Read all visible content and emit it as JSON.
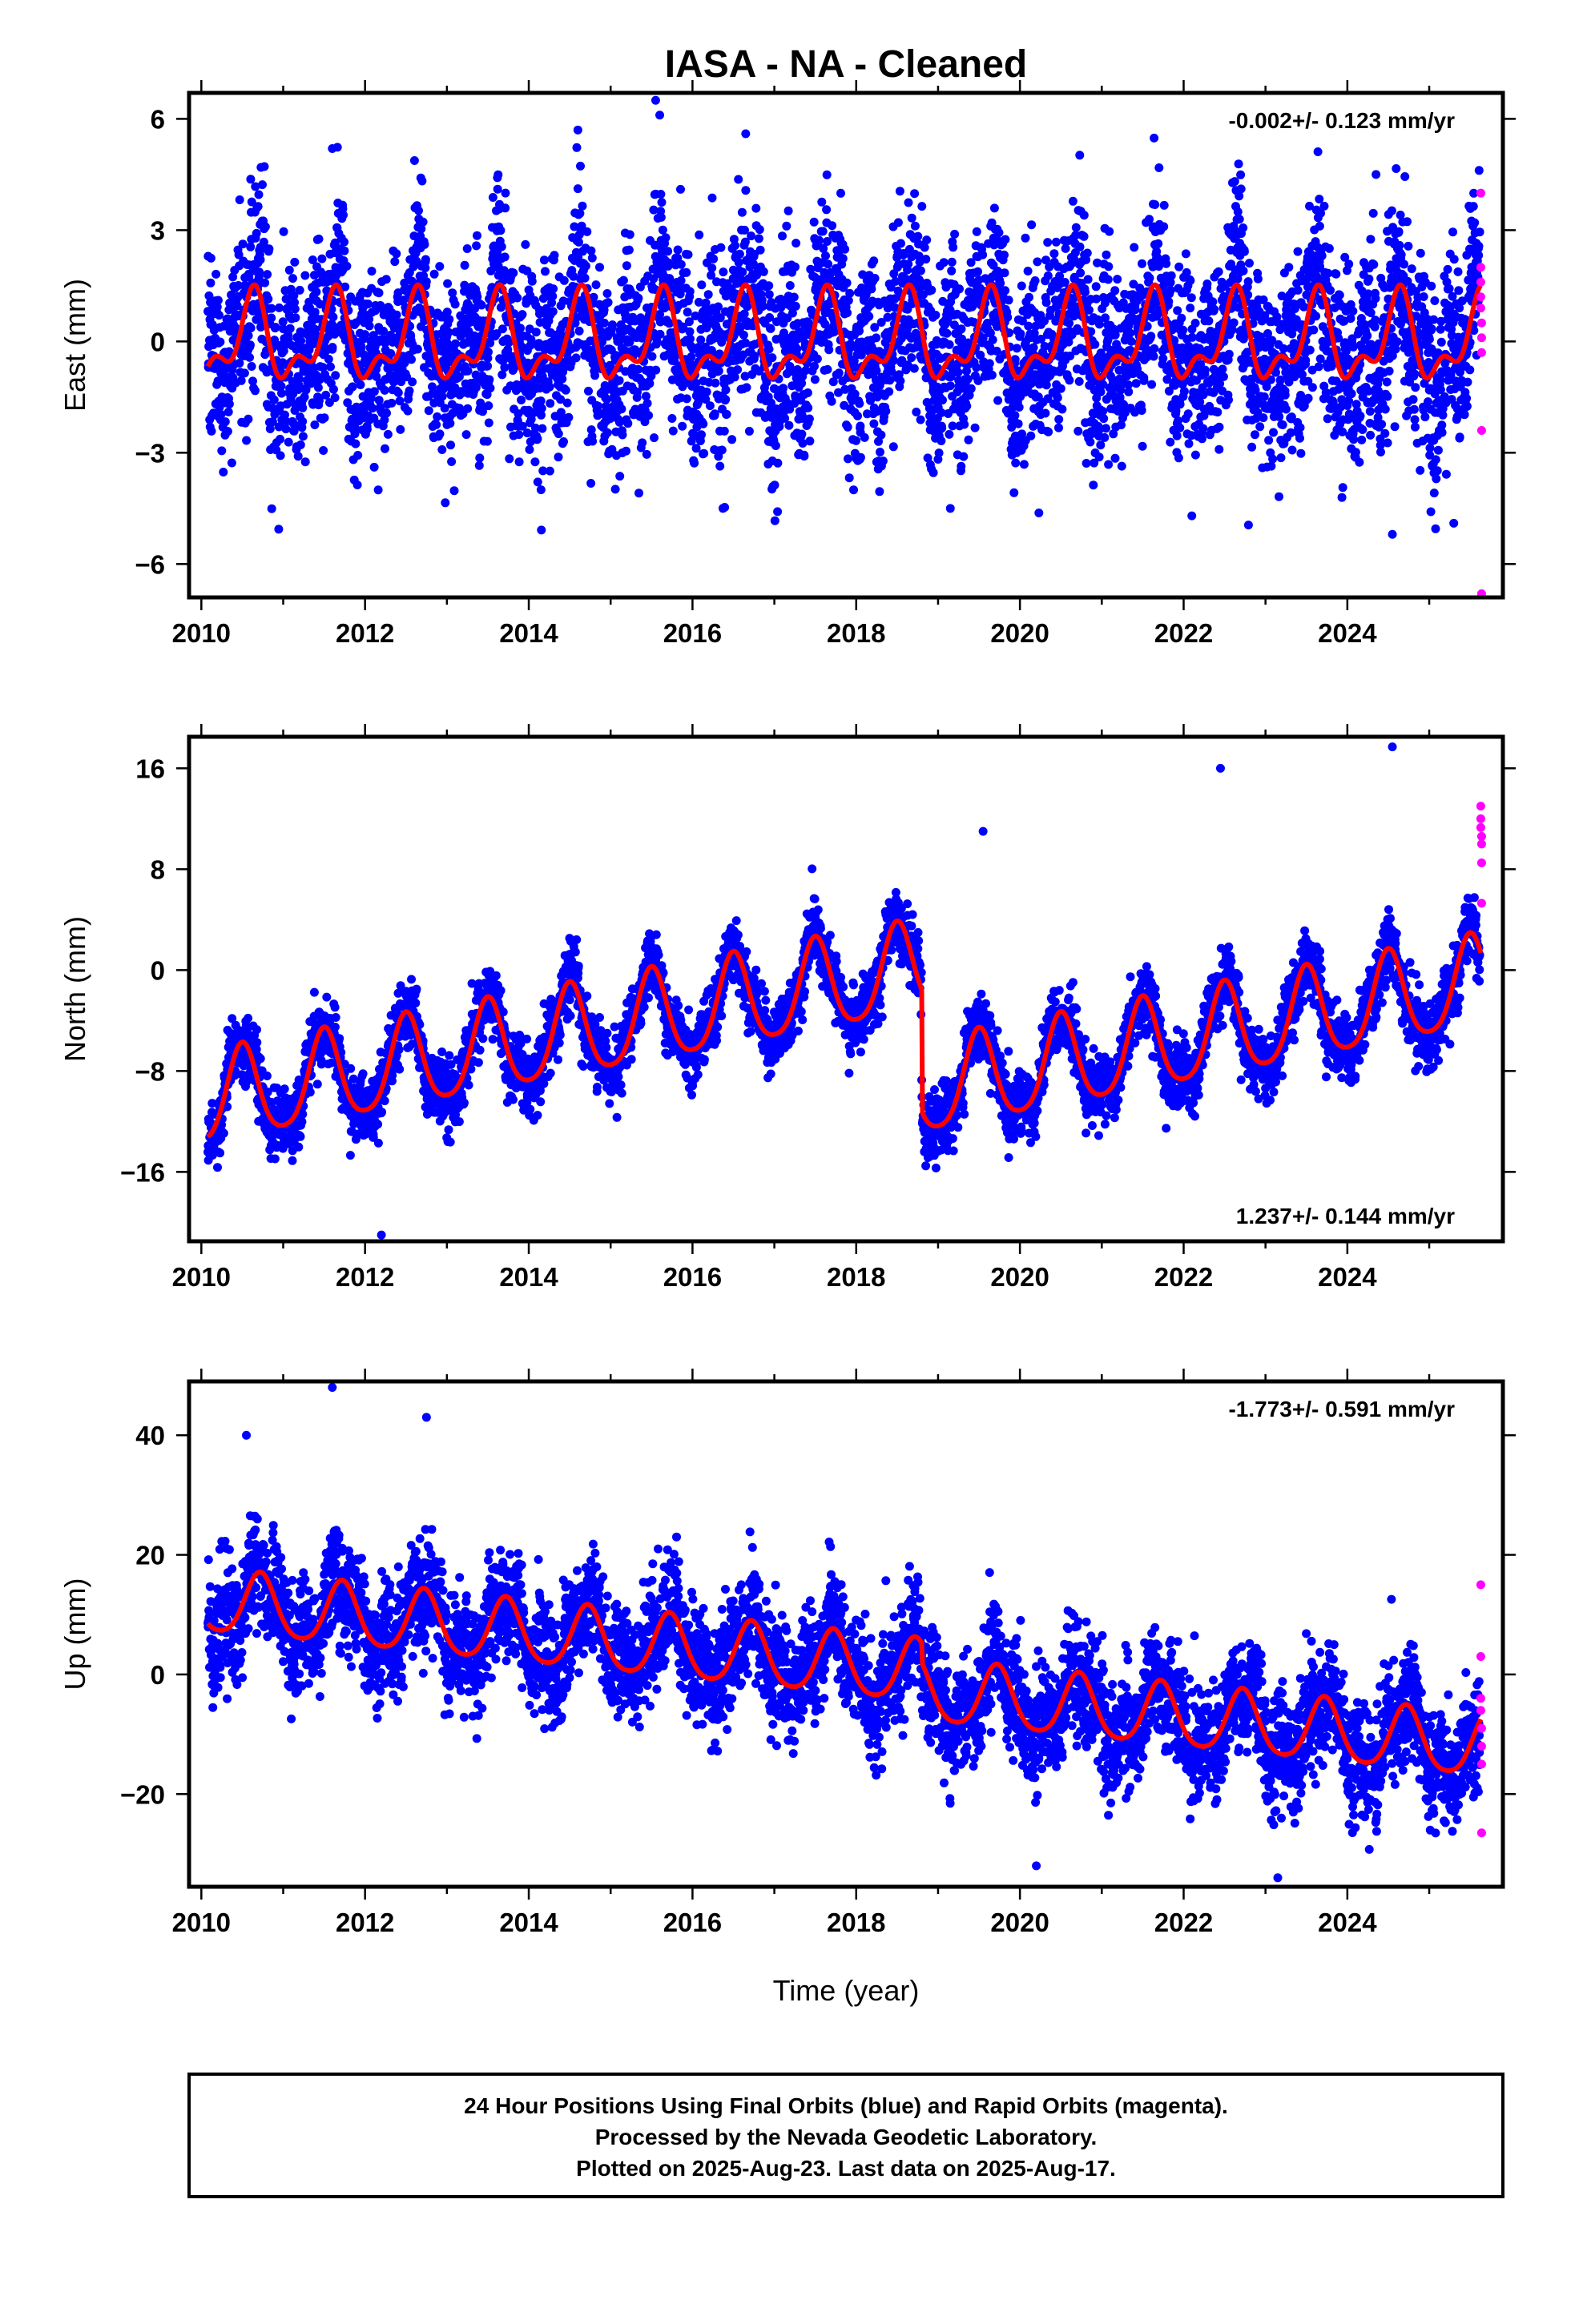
{
  "title": "IASA  - NA - Cleaned",
  "xlabel": "Time (year)",
  "footer": [
    "24 Hour Positions Using Final Orbits (blue) and Rapid Orbits (magenta).",
    "Processed by the Nevada Geodetic Laboratory.",
    "Plotted on 2025-Aug-23. Last data on 2025-Aug-17."
  ],
  "colors": {
    "final": "#0000ff",
    "rapid": "#ff00ff",
    "model": "#ff0000",
    "frame": "#000000"
  },
  "chart_data": [
    {
      "type": "scatter",
      "component": "East",
      "ylabel": "East (mm)",
      "rate_text": "-0.002+/- 0.123 mm/yr",
      "rate_position": "top-right",
      "xlim": [
        2009.85,
        2025.9
      ],
      "ylim": [
        -6.9,
        6.7
      ],
      "xticks": [
        2010,
        2012,
        2014,
        2016,
        2018,
        2020,
        2022,
        2024
      ],
      "yticks": [
        -6,
        -3,
        0,
        3,
        6
      ],
      "ytick_labels": [
        "−6",
        "−3",
        "0",
        "3",
        "6"
      ],
      "model": {
        "series": "red",
        "segments": [
          {
            "from": 2010.08,
            "to": 2018.8,
            "offset": 0.0,
            "rate": 0.0
          },
          {
            "from": 2018.8,
            "to": 2025.63,
            "offset": 0.0,
            "rate": 0.0
          }
        ],
        "annual": 1.0,
        "annual_peak": 0.62,
        "semiannual": 0.55,
        "semiannual_peak": 0.66
      },
      "final_scatter_sigma": 1.25,
      "final_range": [
        2010.08,
        2025.62
      ],
      "rapid_points": [
        [
          2025.63,
          4.0
        ],
        [
          2025.63,
          2.0
        ],
        [
          2025.63,
          1.6
        ],
        [
          2025.63,
          1.2
        ],
        [
          2025.63,
          0.9
        ],
        [
          2025.64,
          0.5
        ],
        [
          2025.64,
          0.1
        ],
        [
          2025.64,
          -0.3
        ],
        [
          2025.64,
          -2.4
        ],
        [
          2025.64,
          -6.8
        ]
      ],
      "notable_points": [
        [
          2015.55,
          6.5
        ],
        [
          2015.6,
          6.1
        ],
        [
          2014.6,
          5.7
        ],
        [
          2016.65,
          5.6
        ],
        [
          2011.6,
          5.2
        ],
        [
          2024.35,
          4.5
        ],
        [
          2014.15,
          -4.0
        ],
        [
          2019.15,
          -4.5
        ],
        [
          2022.1,
          -4.7
        ],
        [
          2024.55,
          -5.2
        ],
        [
          2025.3,
          -4.9
        ]
      ]
    },
    {
      "type": "scatter",
      "component": "North",
      "ylabel": "North (mm)",
      "rate_text": "1.237+/- 0.144 mm/yr",
      "rate_position": "bottom-right",
      "xlim": [
        2009.85,
        2025.9
      ],
      "ylim": [
        -21.5,
        18.5
      ],
      "xticks": [
        2010,
        2012,
        2014,
        2016,
        2018,
        2020,
        2022,
        2024
      ],
      "yticks": [
        -16,
        -8,
        0,
        8,
        16
      ],
      "ytick_labels": [
        "−16",
        "−8",
        "0",
        "8",
        "16"
      ],
      "model": {
        "series": "red",
        "segments": [
          {
            "from": 2010.08,
            "to": 2018.8,
            "offset": -10.4,
            "rate": 1.2
          },
          {
            "from": 2018.8,
            "to": 2025.63,
            "offset": -9.6,
            "rate": 1.25
          }
        ],
        "annual": 3.6,
        "annual_peak": 0.5,
        "semiannual": 0.6,
        "semiannual_peak": 0.5
      },
      "final_scatter_sigma": 1.3,
      "final_range": [
        2010.08,
        2025.62
      ],
      "rapid_points": [
        [
          2025.63,
          13.0
        ],
        [
          2025.63,
          12.0
        ],
        [
          2025.63,
          11.3
        ],
        [
          2025.64,
          10.6
        ],
        [
          2025.64,
          10.0
        ],
        [
          2025.64,
          8.5
        ],
        [
          2025.64,
          5.3
        ]
      ],
      "notable_points": [
        [
          2012.2,
          -21.0
        ],
        [
          2024.55,
          17.7
        ],
        [
          2022.45,
          16.0
        ],
        [
          2019.55,
          11.0
        ]
      ]
    },
    {
      "type": "scatter",
      "component": "Up",
      "ylabel": "Up (mm)",
      "rate_text": "-1.773+/- 0.591 mm/yr",
      "rate_position": "top-right",
      "xlim": [
        2009.85,
        2025.9
      ],
      "ylim": [
        -35.5,
        49.0
      ],
      "xticks": [
        2010,
        2012,
        2014,
        2016,
        2018,
        2020,
        2022,
        2024
      ],
      "yticks": [
        -20,
        0,
        20,
        40
      ],
      "ytick_labels": [
        "−20",
        "0",
        "20",
        "40"
      ],
      "model": {
        "series": "red",
        "segments": [
          {
            "from": 2010.08,
            "to": 2018.8,
            "offset": 12.0,
            "rate": -1.35
          },
          {
            "from": 2018.8,
            "to": 2025.63,
            "offset": -3.0,
            "rate": -1.35
          }
        ],
        "annual": 5.2,
        "annual_peak": 0.72,
        "semiannual": 0.8,
        "semiannual_peak": 0.72
      },
      "final_scatter_sigma": 4.6,
      "final_range": [
        2010.08,
        2025.62
      ],
      "rapid_points": [
        [
          2025.63,
          15.0
        ],
        [
          2025.63,
          3.0
        ],
        [
          2025.63,
          -4.0
        ],
        [
          2025.63,
          -6.0
        ],
        [
          2025.64,
          -9.0
        ],
        [
          2025.64,
          -12.0
        ],
        [
          2025.64,
          -15.0
        ],
        [
          2025.64,
          -26.5
        ]
      ],
      "notable_points": [
        [
          2011.6,
          48.0
        ],
        [
          2012.75,
          43.0
        ],
        [
          2010.55,
          40.0
        ],
        [
          2023.15,
          -34.0
        ],
        [
          2020.2,
          -32.0
        ]
      ]
    }
  ]
}
